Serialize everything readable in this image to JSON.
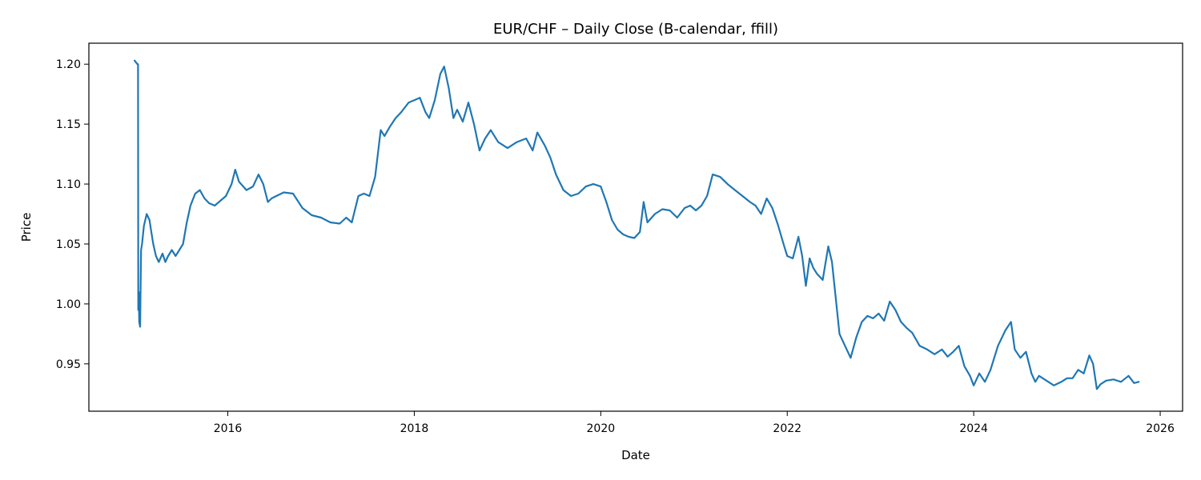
{
  "chart_data": {
    "type": "line",
    "title": "EUR/CHF – Daily Close (B-calendar, ffill)",
    "xlabel": "Date",
    "ylabel": "Price",
    "xlim": [
      2014.51,
      2026.24
    ],
    "ylim": [
      0.9105,
      1.2175
    ],
    "xticks": [
      2016,
      2018,
      2020,
      2022,
      2024,
      2026
    ],
    "yticks": [
      0.95,
      1.0,
      1.05,
      1.1,
      1.15,
      1.2
    ],
    "ytick_labels": [
      "0.95",
      "1.00",
      "1.05",
      "1.10",
      "1.15",
      "1.20"
    ],
    "grid": false,
    "line_color": "#1f77b4",
    "series": [
      {
        "x": [
          2015.0,
          2015.02,
          2015.03,
          2015.037,
          2015.04,
          2015.045,
          2015.05,
          2015.06,
          2015.07,
          2015.08,
          2015.1,
          2015.13,
          2015.16,
          2015.18,
          2015.2,
          2015.23,
          2015.26,
          2015.3,
          2015.33,
          2015.36,
          2015.4,
          2015.44,
          2015.48,
          2015.52,
          2015.56,
          2015.6,
          2015.65,
          2015.7,
          2015.75,
          2015.8,
          2015.86,
          2015.92,
          2015.98,
          2016.04,
          2016.08,
          2016.12,
          2016.2,
          2016.27,
          2016.33,
          2016.38,
          2016.43,
          2016.47,
          2016.52,
          2016.6,
          2016.7,
          2016.8,
          2016.9,
          2017.0,
          2017.1,
          2017.2,
          2017.27,
          2017.33,
          2017.4,
          2017.46,
          2017.52,
          2017.58,
          2017.64,
          2017.68,
          2017.74,
          2017.8,
          2017.86,
          2017.94,
          2018.0,
          2018.06,
          2018.12,
          2018.16,
          2018.22,
          2018.28,
          2018.32,
          2018.37,
          2018.42,
          2018.46,
          2018.52,
          2018.58,
          2018.64,
          2018.7,
          2018.76,
          2018.82,
          2018.9,
          2019.0,
          2019.1,
          2019.2,
          2019.27,
          2019.32,
          2019.4,
          2019.46,
          2019.52,
          2019.6,
          2019.68,
          2019.76,
          2019.84,
          2019.92,
          2020.0,
          2020.06,
          2020.12,
          2020.18,
          2020.24,
          2020.3,
          2020.36,
          2020.42,
          2020.46,
          2020.5,
          2020.58,
          2020.66,
          2020.74,
          2020.82,
          2020.9,
          2020.96,
          2021.02,
          2021.08,
          2021.14,
          2021.2,
          2021.28,
          2021.36,
          2021.44,
          2021.52,
          2021.6,
          2021.66,
          2021.72,
          2021.78,
          2021.84,
          2021.9,
          2021.96,
          2022.0,
          2022.06,
          2022.12,
          2022.16,
          2022.2,
          2022.24,
          2022.28,
          2022.32,
          2022.38,
          2022.44,
          2022.48,
          2022.52,
          2022.56,
          2022.62,
          2022.68,
          2022.74,
          2022.8,
          2022.86,
          2022.92,
          2022.98,
          2023.04,
          2023.1,
          2023.16,
          2023.22,
          2023.28,
          2023.34,
          2023.42,
          2023.5,
          2023.58,
          2023.66,
          2023.72,
          2023.78,
          2023.84,
          2023.9,
          2023.96,
          2024.0,
          2024.06,
          2024.12,
          2024.18,
          2024.26,
          2024.34,
          2024.4,
          2024.44,
          2024.5,
          2024.56,
          2024.62,
          2024.66,
          2024.7,
          2024.78,
          2024.86,
          2024.94,
          2025.0,
          2025.06,
          2025.12,
          2025.18,
          2025.24,
          2025.28,
          2025.32,
          2025.36,
          2025.42,
          2025.5,
          2025.58,
          2025.66,
          2025.72,
          2025.77
        ],
        "y": [
          1.203,
          1.201,
          1.2,
          1.2,
          0.995,
          1.01,
          0.985,
          0.981,
          1.045,
          1.05,
          1.065,
          1.075,
          1.07,
          1.06,
          1.05,
          1.04,
          1.035,
          1.042,
          1.035,
          1.04,
          1.045,
          1.04,
          1.045,
          1.05,
          1.068,
          1.082,
          1.092,
          1.095,
          1.088,
          1.084,
          1.082,
          1.086,
          1.09,
          1.1,
          1.112,
          1.102,
          1.095,
          1.098,
          1.108,
          1.1,
          1.085,
          1.088,
          1.09,
          1.093,
          1.092,
          1.08,
          1.074,
          1.072,
          1.068,
          1.067,
          1.072,
          1.068,
          1.09,
          1.092,
          1.09,
          1.106,
          1.145,
          1.14,
          1.148,
          1.155,
          1.16,
          1.168,
          1.17,
          1.172,
          1.16,
          1.155,
          1.17,
          1.192,
          1.198,
          1.18,
          1.155,
          1.162,
          1.152,
          1.168,
          1.15,
          1.128,
          1.138,
          1.145,
          1.135,
          1.13,
          1.135,
          1.138,
          1.128,
          1.143,
          1.132,
          1.122,
          1.108,
          1.095,
          1.09,
          1.092,
          1.098,
          1.1,
          1.098,
          1.085,
          1.07,
          1.062,
          1.058,
          1.056,
          1.055,
          1.06,
          1.085,
          1.068,
          1.075,
          1.079,
          1.078,
          1.072,
          1.08,
          1.082,
          1.078,
          1.082,
          1.09,
          1.108,
          1.106,
          1.1,
          1.095,
          1.09,
          1.085,
          1.082,
          1.075,
          1.088,
          1.08,
          1.066,
          1.05,
          1.04,
          1.038,
          1.056,
          1.04,
          1.015,
          1.038,
          1.03,
          1.025,
          1.02,
          1.048,
          1.035,
          1.005,
          0.975,
          0.965,
          0.955,
          0.972,
          0.985,
          0.99,
          0.988,
          0.992,
          0.986,
          1.002,
          0.995,
          0.985,
          0.98,
          0.976,
          0.965,
          0.962,
          0.958,
          0.962,
          0.956,
          0.96,
          0.965,
          0.948,
          0.94,
          0.932,
          0.942,
          0.935,
          0.945,
          0.965,
          0.978,
          0.985,
          0.962,
          0.955,
          0.96,
          0.942,
          0.935,
          0.94,
          0.936,
          0.932,
          0.935,
          0.938,
          0.938,
          0.945,
          0.942,
          0.957,
          0.95,
          0.929,
          0.933,
          0.936,
          0.937,
          0.935,
          0.94,
          0.934,
          0.935
        ]
      }
    ]
  }
}
